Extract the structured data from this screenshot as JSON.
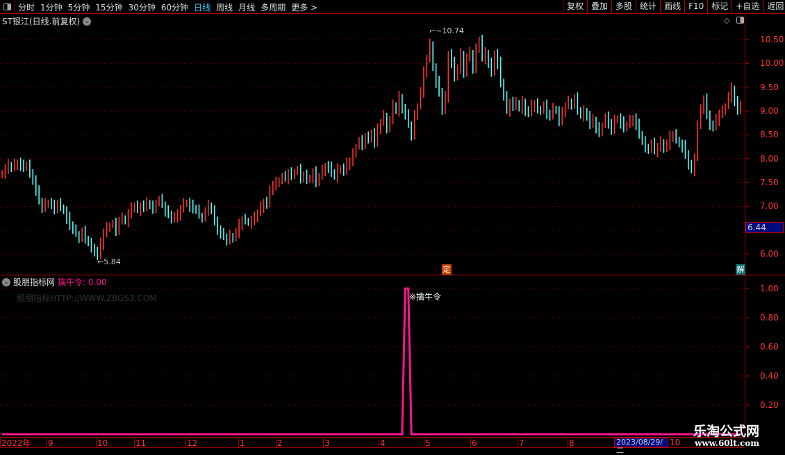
{
  "toolbar": {
    "tabs": [
      "分时",
      "1分钟",
      "5分钟",
      "15分钟",
      "30分钟",
      "60分钟",
      "日线",
      "周线",
      "月线",
      "多周期",
      "更多 >"
    ],
    "active_tab": "日线",
    "buttons": [
      "复权",
      "叠加",
      "多股",
      "统计",
      "画线",
      "F10",
      "标记",
      "+自选",
      "返回"
    ]
  },
  "main": {
    "title": "ST银江(日线.前复权)",
    "price_tag": "6.44",
    "marker_ding": "定",
    "marker_jie": "解",
    "high_label": "10.74",
    "low_label": "5.84"
  },
  "sub": {
    "indicator_name": "股朋指标网",
    "value_label": "擒牛令: 0.00",
    "watermark": "股朋指标HTTP://WWW.ZBGS3.COM",
    "signal_label": "※擒牛令"
  },
  "time_axis": {
    "labels": [
      "2022年",
      "9",
      "10",
      "11",
      "12",
      "1",
      "2",
      "3",
      "4",
      "5",
      "6",
      "7",
      "8"
    ],
    "current_date": "2023/08/29/二",
    "next": "10"
  },
  "logo": {
    "name": "乐淘公式网",
    "url": "www.60lt.com"
  },
  "colors": {
    "up": "#ff3232",
    "down": "#54fcfc",
    "grid": "#8b0000",
    "signal": "#ff1493",
    "axis": "#ff3333"
  },
  "chart_data": [
    {
      "type": "candlestick",
      "title": "ST银江(日线.前复权)",
      "yticks": [
        6.0,
        6.5,
        7.0,
        7.5,
        8.0,
        8.5,
        9.0,
        9.5,
        10.0,
        10.5
      ],
      "ytick_labels": [
        "6.00",
        "",
        "7.00",
        "7.50",
        "8.00",
        "8.50",
        "9.00",
        "9.50",
        "10.00",
        "10.50"
      ],
      "ylim": [
        5.55,
        10.93
      ],
      "grid": true,
      "high": 10.74,
      "low": 5.84,
      "close": [
        7.7,
        7.78,
        7.85,
        7.8,
        7.88,
        7.92,
        7.84,
        7.8,
        7.86,
        7.72,
        7.55,
        7.3,
        7.1,
        6.98,
        7.05,
        7.08,
        7.0,
        6.95,
        7.05,
        6.98,
        6.9,
        6.75,
        6.6,
        6.5,
        6.42,
        6.35,
        6.45,
        6.3,
        6.22,
        6.15,
        6.05,
        5.95,
        6.2,
        6.45,
        6.55,
        6.6,
        6.62,
        6.5,
        6.7,
        6.75,
        6.68,
        6.85,
        6.95,
        7.0,
        6.92,
        7.02,
        6.98,
        7.05,
        7.0,
        6.96,
        7.08,
        7.12,
        7.02,
        6.9,
        6.85,
        6.72,
        6.78,
        6.8,
        6.95,
        7.05,
        7.08,
        7.0,
        6.95,
        6.92,
        6.8,
        6.78,
        6.88,
        7.0,
        6.9,
        6.72,
        6.5,
        6.4,
        6.35,
        6.3,
        6.38,
        6.32,
        6.45,
        6.6,
        6.72,
        6.7,
        6.65,
        6.7,
        6.75,
        6.85,
        6.98,
        7.1,
        7.05,
        7.3,
        7.45,
        7.5,
        7.55,
        7.6,
        7.58,
        7.7,
        7.65,
        7.72,
        7.75,
        7.6,
        7.65,
        7.55,
        7.6,
        7.7,
        7.5,
        7.62,
        7.75,
        7.85,
        7.8,
        7.7,
        7.62,
        7.78,
        7.8,
        7.72,
        7.88,
        7.95,
        8.1,
        8.25,
        8.35,
        8.3,
        8.45,
        8.4,
        8.55,
        8.35,
        8.6,
        8.75,
        8.9,
        8.65,
        8.8,
        9.1,
        9.0,
        9.3,
        9.05,
        8.9,
        8.7,
        8.5,
        8.9,
        9.1,
        9.4,
        9.8,
        10.1,
        10.4,
        9.9,
        9.6,
        9.4,
        9.0,
        9.3,
        10.2,
        10.0,
        9.7,
        9.9,
        10.2,
        9.8,
        10.1,
        10.2,
        9.9,
        10.3,
        10.5,
        10.1,
        10.2,
        10.0,
        9.8,
        10.2,
        10.0,
        9.6,
        9.3,
        9.0,
        9.2,
        9.1,
        9.15,
        9.05,
        9.2,
        9.0,
        8.95,
        9.1,
        9.15,
        9.05,
        9.0,
        9.1,
        8.95,
        8.9,
        9.05,
        9.0,
        8.8,
        8.95,
        9.1,
        9.2,
        9.15,
        9.25,
        9.0,
        8.9,
        9.0,
        8.9,
        8.7,
        8.8,
        8.65,
        8.55,
        8.7,
        8.85,
        8.75,
        8.6,
        8.8,
        8.85,
        8.75,
        8.65,
        8.7,
        8.8,
        8.85,
        8.7,
        8.5,
        8.35,
        8.25,
        8.2,
        8.3,
        8.15,
        8.25,
        8.35,
        8.2,
        8.3,
        8.45,
        8.5,
        8.4,
        8.3,
        8.25,
        8.1,
        7.85,
        7.75,
        8.05,
        8.7,
        9.0,
        9.25,
        8.95,
        8.7,
        8.65,
        8.8,
        8.95,
        9.0,
        9.1,
        9.3,
        9.45,
        9.2,
        9.0,
        9.15
      ]
    },
    {
      "type": "line",
      "series": [
        {
          "name": "擒牛令",
          "signal_days": [
            131,
            132
          ],
          "signal_value": 1.0,
          "other_value": 0.0
        }
      ],
      "yticks": [
        0.2,
        0.4,
        0.6,
        0.8,
        1.0
      ],
      "ytick_labels": [
        "0.20",
        "0.40",
        "0.60",
        "0.80",
        "1.00"
      ],
      "ylim": [
        0,
        1.0
      ]
    }
  ]
}
